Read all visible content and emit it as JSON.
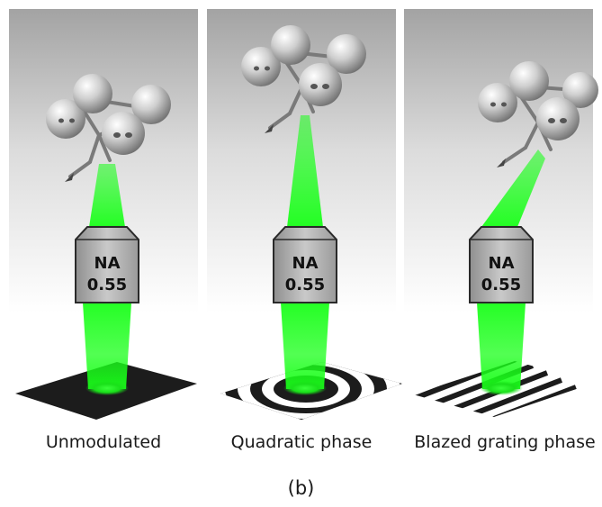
{
  "panels": [
    {
      "caption": "Unmodulated",
      "objective_na": "NA",
      "objective_value": "0.55",
      "beam": "straight",
      "pattern": "dark-square"
    },
    {
      "caption": "Quadratic phase",
      "objective_na": "NA",
      "objective_value": "0.55",
      "beam": "focused-far",
      "pattern": "concentric-rings"
    },
    {
      "caption": "Blazed grating phase",
      "objective_na": "NA",
      "objective_value": "0.55",
      "beam": "tilted",
      "pattern": "diagonal-stripes"
    }
  ],
  "figure_label": "(b)",
  "colors": {
    "beam": "#19ff19",
    "objective": "#b0b0b0",
    "pattern_dark": "#1c1c1c",
    "background_gradient_top": "#9a9a9a"
  }
}
